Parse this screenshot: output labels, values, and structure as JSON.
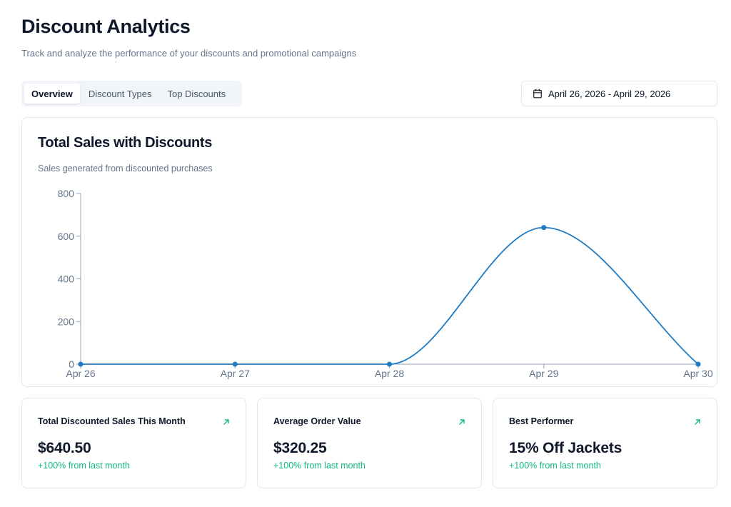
{
  "header": {
    "title": "Discount Analytics",
    "subtitle": "Track and analyze the performance of your discounts and promotional campaigns"
  },
  "tabs": [
    {
      "label": "Overview",
      "active": true
    },
    {
      "label": "Discount Types",
      "active": false
    },
    {
      "label": "Top Discounts",
      "active": false
    }
  ],
  "date_range": {
    "icon": "calendar-icon",
    "label": "April 26, 2026 - April 29, 2026"
  },
  "chart_card": {
    "title": "Total Sales with Discounts",
    "subtitle": "Sales generated from discounted purchases"
  },
  "chart_data": {
    "type": "line",
    "title": "Total Sales with Discounts",
    "subtitle": "Sales generated from discounted purchases",
    "categories": [
      "Apr 26",
      "Apr 27",
      "Apr 28",
      "Apr 29",
      "Apr 30"
    ],
    "series": [
      {
        "values": [
          0,
          0,
          0,
          640.5,
          0
        ],
        "color": "#1e7ac2"
      }
    ],
    "yticks": [
      "0",
      "200",
      "400",
      "600",
      "800"
    ],
    "ylim": [
      0,
      800
    ],
    "xlabel": "",
    "ylabel": "",
    "grid": false,
    "curve": "smooth"
  },
  "stats": [
    {
      "label": "Total Discounted Sales This Month",
      "value": "$640.50",
      "change": "+100% from last month",
      "icon": "arrow-up-right-icon"
    },
    {
      "label": "Average Order Value",
      "value": "$320.25",
      "change": "+100% from last month",
      "icon": "arrow-up-right-icon"
    },
    {
      "label": "Best Performer",
      "value": "15% Off Jackets",
      "change": "+100% from last month",
      "icon": "arrow-up-right-icon"
    }
  ],
  "colors": {
    "accent_line": "#1e7ac2",
    "positive": "#10b981",
    "muted_text": "#64748b",
    "border": "#e2e8f0"
  }
}
